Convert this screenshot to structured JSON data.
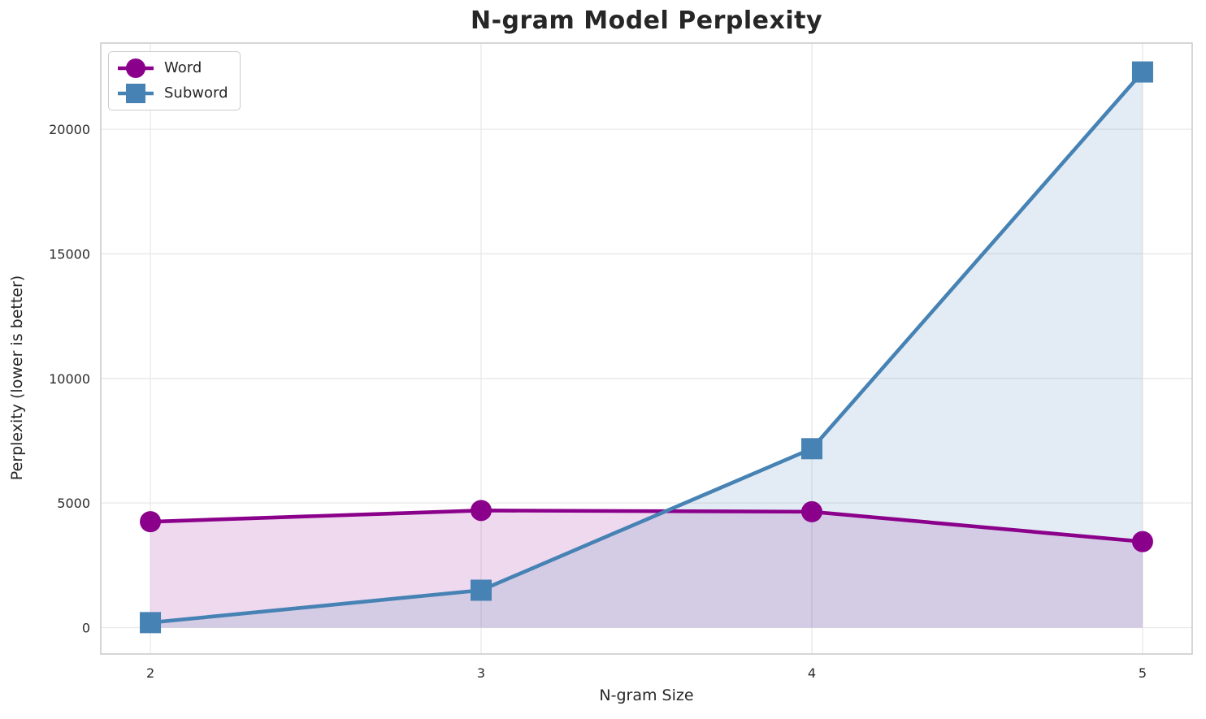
{
  "chart_data": {
    "type": "line",
    "title": "N-gram Model Perplexity",
    "xlabel": "N-gram Size",
    "ylabel": "Perplexity (lower is better)",
    "x": [
      2,
      3,
      4,
      5
    ],
    "xticklabels": [
      "2",
      "3",
      "4",
      "5"
    ],
    "yticks": [
      0,
      5000,
      10000,
      15000,
      20000
    ],
    "yticklabels": [
      "0",
      "5000",
      "10000",
      "15000",
      "20000"
    ],
    "xlim": [
      1.85,
      5.15
    ],
    "ylim": [
      -1060,
      23460
    ],
    "grid": true,
    "legend_position": "upper-left",
    "fill_baseline": 0,
    "series": [
      {
        "name": "Word",
        "marker": "circle",
        "color": "#8B008B",
        "fill_alpha": 0.15,
        "values": [
          4250,
          4700,
          4650,
          3450
        ]
      },
      {
        "name": "Subword",
        "marker": "square",
        "color": "#4682B4",
        "fill_alpha": 0.15,
        "values": [
          200,
          1500,
          7180,
          22300
        ]
      }
    ]
  },
  "colors": {
    "background": "#ffffff",
    "grid": "#e8e8e8",
    "spine": "#c9c9c9",
    "text": "#262626",
    "tick_text": "#2b2b2b"
  }
}
